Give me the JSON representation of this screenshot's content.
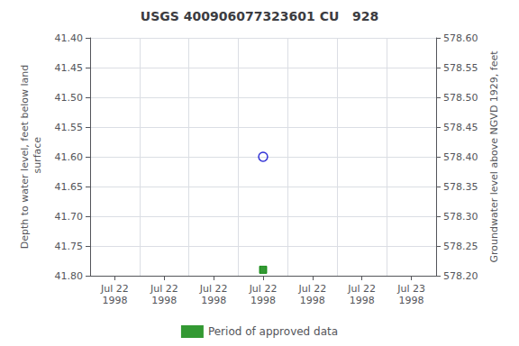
{
  "chart_data": {
    "type": "scatter",
    "title": "USGS 400906077323601 CU   928",
    "ylabel": "Depth to water level, feet below land\n surface",
    "y2label": "Groundwater level above NGVD 1929, feet",
    "categories": [
      "Jul 22\n1998",
      "Jul 22\n1998",
      "Jul 22\n1998",
      "Jul 22\n1998",
      "Jul 22\n1998",
      "Jul 22\n1998",
      "Jul 23\n1998"
    ],
    "series": [
      {
        "color": "#0000cc",
        "marker": "open_circle",
        "values": [
          null,
          null,
          null,
          41.6,
          null,
          null,
          null
        ]
      },
      {
        "name": "Period of approved data",
        "color": "#008000",
        "marker": "square",
        "values": [
          null,
          null,
          null,
          41.79,
          null,
          null,
          null
        ]
      }
    ],
    "ylim": [
      41.8,
      41.4
    ],
    "yticks": [
      {
        "value": 41.4,
        "label": "41.40"
      },
      {
        "value": 41.45,
        "label": "41.45"
      },
      {
        "value": 41.5,
        "label": "41.50"
      },
      {
        "value": 41.55,
        "label": "41.55"
      },
      {
        "value": 41.6,
        "label": "41.60"
      },
      {
        "value": 41.65,
        "label": "41.65"
      },
      {
        "value": 41.7,
        "label": "41.70"
      },
      {
        "value": 41.75,
        "label": "41.75"
      },
      {
        "value": 41.8,
        "label": "41.80"
      }
    ],
    "y2lim": [
      578.2,
      578.6
    ],
    "y2ticks": [
      {
        "value": 578.6,
        "label": "578.60"
      },
      {
        "value": 578.55,
        "label": "578.55"
      },
      {
        "value": 578.5,
        "label": "578.50"
      },
      {
        "value": 578.45,
        "label": "578.45"
      },
      {
        "value": 578.4,
        "label": "578.40"
      },
      {
        "value": 578.35,
        "label": "578.35"
      },
      {
        "value": 578.3,
        "label": "578.30"
      },
      {
        "value": 578.25,
        "label": "578.25"
      },
      {
        "value": 578.2,
        "label": "578.20"
      }
    ],
    "grid": true,
    "legend": "bottom"
  }
}
